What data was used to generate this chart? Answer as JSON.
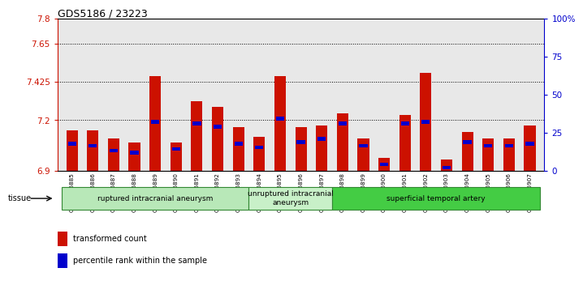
{
  "title": "GDS5186 / 23223",
  "samples": [
    "GSM1306885",
    "GSM1306886",
    "GSM1306887",
    "GSM1306888",
    "GSM1306889",
    "GSM1306890",
    "GSM1306891",
    "GSM1306892",
    "GSM1306893",
    "GSM1306894",
    "GSM1306895",
    "GSM1306896",
    "GSM1306897",
    "GSM1306898",
    "GSM1306899",
    "GSM1306900",
    "GSM1306901",
    "GSM1306902",
    "GSM1306903",
    "GSM1306904",
    "GSM1306905",
    "GSM1306906",
    "GSM1306907"
  ],
  "red_values": [
    7.14,
    7.14,
    7.09,
    7.07,
    7.46,
    7.07,
    7.31,
    7.28,
    7.16,
    7.1,
    7.46,
    7.16,
    7.17,
    7.24,
    7.09,
    6.98,
    7.23,
    7.48,
    6.97,
    7.13,
    7.09,
    7.09,
    7.17
  ],
  "blue_values": [
    7.06,
    7.05,
    7.02,
    7.01,
    7.19,
    7.03,
    7.18,
    7.16,
    7.06,
    7.04,
    7.21,
    7.07,
    7.09,
    7.18,
    7.05,
    6.94,
    7.18,
    7.19,
    6.92,
    7.07,
    7.05,
    7.05,
    7.06
  ],
  "ymin": 6.9,
  "ymax": 7.8,
  "yticks_left": [
    6.9,
    7.2,
    7.425,
    7.65,
    7.8
  ],
  "ytick_labels_left": [
    "6.9",
    "7.2",
    "7.425",
    "7.65",
    "7.8"
  ],
  "yticks_right": [
    0,
    25,
    50,
    75,
    100
  ],
  "ytick_labels_right": [
    "0",
    "25",
    "50",
    "75",
    "100%"
  ],
  "grid_lines": [
    7.65,
    7.425,
    7.2
  ],
  "groups": [
    {
      "label": "ruptured intracranial aneurysm",
      "start": 0,
      "end": 9
    },
    {
      "label": "unruptured intracranial\naneurysm",
      "start": 9,
      "end": 13
    },
    {
      "label": "superficial temporal artery",
      "start": 13,
      "end": 23
    }
  ],
  "group_colors": [
    "#b8e8b8",
    "#c8f0c8",
    "#44cc44"
  ],
  "legend_red": "transformed count",
  "legend_blue": "percentile rank within the sample",
  "tissue_label": "tissue",
  "bar_width": 0.55,
  "blue_bar_width": 0.4,
  "blue_bar_height": 0.022,
  "bg_color": "#e8e8e8",
  "red_color": "#cc1100",
  "blue_color": "#0000cc"
}
